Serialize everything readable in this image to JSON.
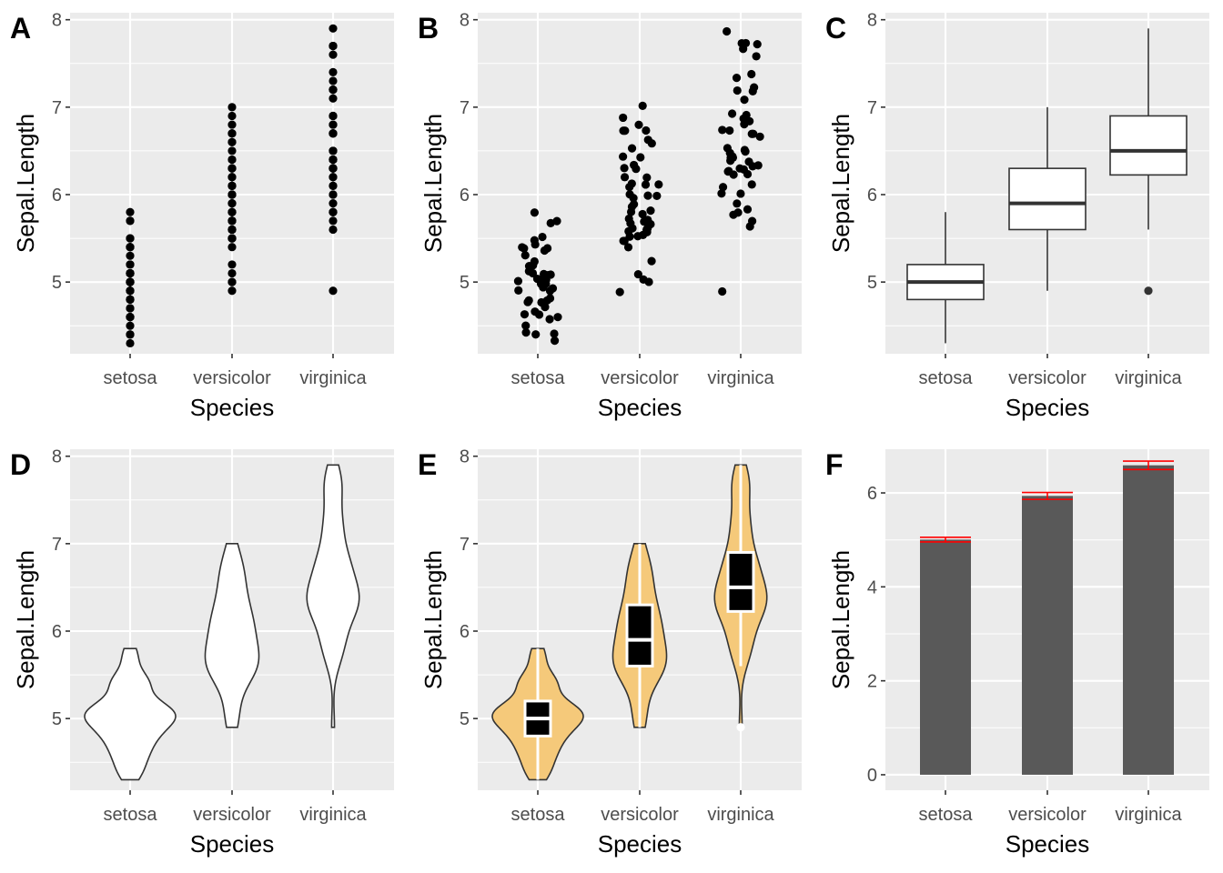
{
  "figure": {
    "panel_background": "#ebebeb",
    "grid_color": "#ffffff",
    "tick_color": "#333333"
  },
  "chart_data": [
    {
      "id": "A",
      "tag": "A",
      "type": "scatter",
      "title": "",
      "xlabel": "Species",
      "ylabel": "Sepal.Length",
      "categories": [
        "setosa",
        "versicolor",
        "virginica"
      ],
      "yticks": [
        5,
        6,
        7,
        8
      ],
      "ylim": [
        4.18,
        8.08
      ],
      "grid": true,
      "point_color": "#000000",
      "jitter": false,
      "series": [
        {
          "name": "setosa",
          "values": [
            5.1,
            4.9,
            4.7,
            4.6,
            5.0,
            5.4,
            4.6,
            5.0,
            4.4,
            4.9,
            5.4,
            4.8,
            4.8,
            4.3,
            5.8,
            5.7,
            5.4,
            5.1,
            5.7,
            5.1,
            5.4,
            5.1,
            4.6,
            5.1,
            4.8,
            5.0,
            5.0,
            5.2,
            5.2,
            4.7,
            4.8,
            5.4,
            5.2,
            5.5,
            4.9,
            5.0,
            5.5,
            4.9,
            4.4,
            5.1,
            5.0,
            4.5,
            4.4,
            5.0,
            5.1,
            4.8,
            5.1,
            4.6,
            5.3,
            5.0
          ]
        },
        {
          "name": "versicolor",
          "values": [
            7.0,
            6.4,
            6.9,
            5.5,
            6.5,
            5.7,
            6.3,
            4.9,
            6.6,
            5.2,
            5.0,
            5.9,
            6.0,
            6.1,
            5.6,
            6.7,
            5.6,
            5.8,
            6.2,
            5.6,
            5.9,
            6.1,
            6.3,
            6.1,
            6.4,
            6.6,
            6.8,
            6.7,
            6.0,
            5.7,
            5.5,
            5.5,
            5.8,
            6.0,
            5.4,
            6.0,
            6.7,
            6.3,
            5.6,
            5.5,
            5.5,
            6.1,
            5.8,
            5.0,
            5.6,
            5.7,
            5.7,
            6.2,
            5.1,
            5.7
          ]
        },
        {
          "name": "virginica",
          "values": [
            6.3,
            5.8,
            7.1,
            6.3,
            6.5,
            7.6,
            4.9,
            7.3,
            6.7,
            7.2,
            6.5,
            6.4,
            6.8,
            5.7,
            5.8,
            6.4,
            6.5,
            7.7,
            7.7,
            6.0,
            6.9,
            5.6,
            7.7,
            6.3,
            6.7,
            7.2,
            6.2,
            6.1,
            6.4,
            7.2,
            7.4,
            7.9,
            6.4,
            6.3,
            6.1,
            7.7,
            6.3,
            6.4,
            6.0,
            6.9,
            6.7,
            6.9,
            5.8,
            6.8,
            6.7,
            6.7,
            6.3,
            6.5,
            6.2,
            5.9
          ]
        }
      ]
    },
    {
      "id": "B",
      "tag": "B",
      "type": "scatter",
      "title": "",
      "xlabel": "Species",
      "ylabel": "Sepal.Length",
      "categories": [
        "setosa",
        "versicolor",
        "virginica"
      ],
      "yticks": [
        5,
        6,
        7,
        8
      ],
      "ylim": [
        4.18,
        8.08
      ],
      "grid": true,
      "point_color": "#000000",
      "jitter": true,
      "jitter_width": 0.2,
      "series_ref": "A"
    },
    {
      "id": "C",
      "tag": "C",
      "type": "box",
      "title": "",
      "xlabel": "Species",
      "ylabel": "Sepal.Length",
      "categories": [
        "setosa",
        "versicolor",
        "virginica"
      ],
      "yticks": [
        5,
        6,
        7,
        8
      ],
      "ylim": [
        4.18,
        8.08
      ],
      "grid": true,
      "box_fill": "#ffffff",
      "line_color": "#333333",
      "boxes": [
        {
          "name": "setosa",
          "whisker_low": 4.3,
          "q1": 4.8,
          "median": 5.0,
          "q3": 5.2,
          "whisker_high": 5.8,
          "outliers": []
        },
        {
          "name": "versicolor",
          "whisker_low": 4.9,
          "q1": 5.6,
          "median": 5.9,
          "q3": 6.3,
          "whisker_high": 7.0,
          "outliers": []
        },
        {
          "name": "virginica",
          "whisker_low": 5.6,
          "q1": 6.225,
          "median": 6.5,
          "q3": 6.9,
          "whisker_high": 7.9,
          "outliers": [
            4.9
          ]
        }
      ]
    },
    {
      "id": "D",
      "tag": "D",
      "type": "violin",
      "title": "",
      "xlabel": "Species",
      "ylabel": "Sepal.Length",
      "categories": [
        "setosa",
        "versicolor",
        "virginica"
      ],
      "yticks": [
        5,
        6,
        7,
        8
      ],
      "ylim": [
        4.18,
        8.08
      ],
      "grid": true,
      "fill": "#ffffff",
      "line_color": "#333333",
      "series_ref": "A"
    },
    {
      "id": "E",
      "tag": "E",
      "type": "violin",
      "title": "",
      "xlabel": "Species",
      "ylabel": "Sepal.Length",
      "categories": [
        "setosa",
        "versicolor",
        "virginica"
      ],
      "yticks": [
        5,
        6,
        7,
        8
      ],
      "ylim": [
        4.18,
        8.08
      ],
      "grid": true,
      "fill": "#f5c97a",
      "line_color": "#333333",
      "inner_boxplot": {
        "color": "#000000",
        "line_color": "#ffffff"
      },
      "box_ref": "C",
      "series_ref": "A"
    },
    {
      "id": "F",
      "tag": "F",
      "type": "bar",
      "title": "",
      "xlabel": "Species",
      "ylabel": "Sepal.Length",
      "categories": [
        "setosa",
        "versicolor",
        "virginica"
      ],
      "values": [
        5.006,
        5.936,
        6.588
      ],
      "errors": [
        0.0498,
        0.073,
        0.0899
      ],
      "yticks": [
        0,
        2,
        4,
        6
      ],
      "ylim": [
        -0.33,
        6.93
      ],
      "grid": true,
      "bar_color": "#595959",
      "error_color": "#ff0000"
    }
  ]
}
